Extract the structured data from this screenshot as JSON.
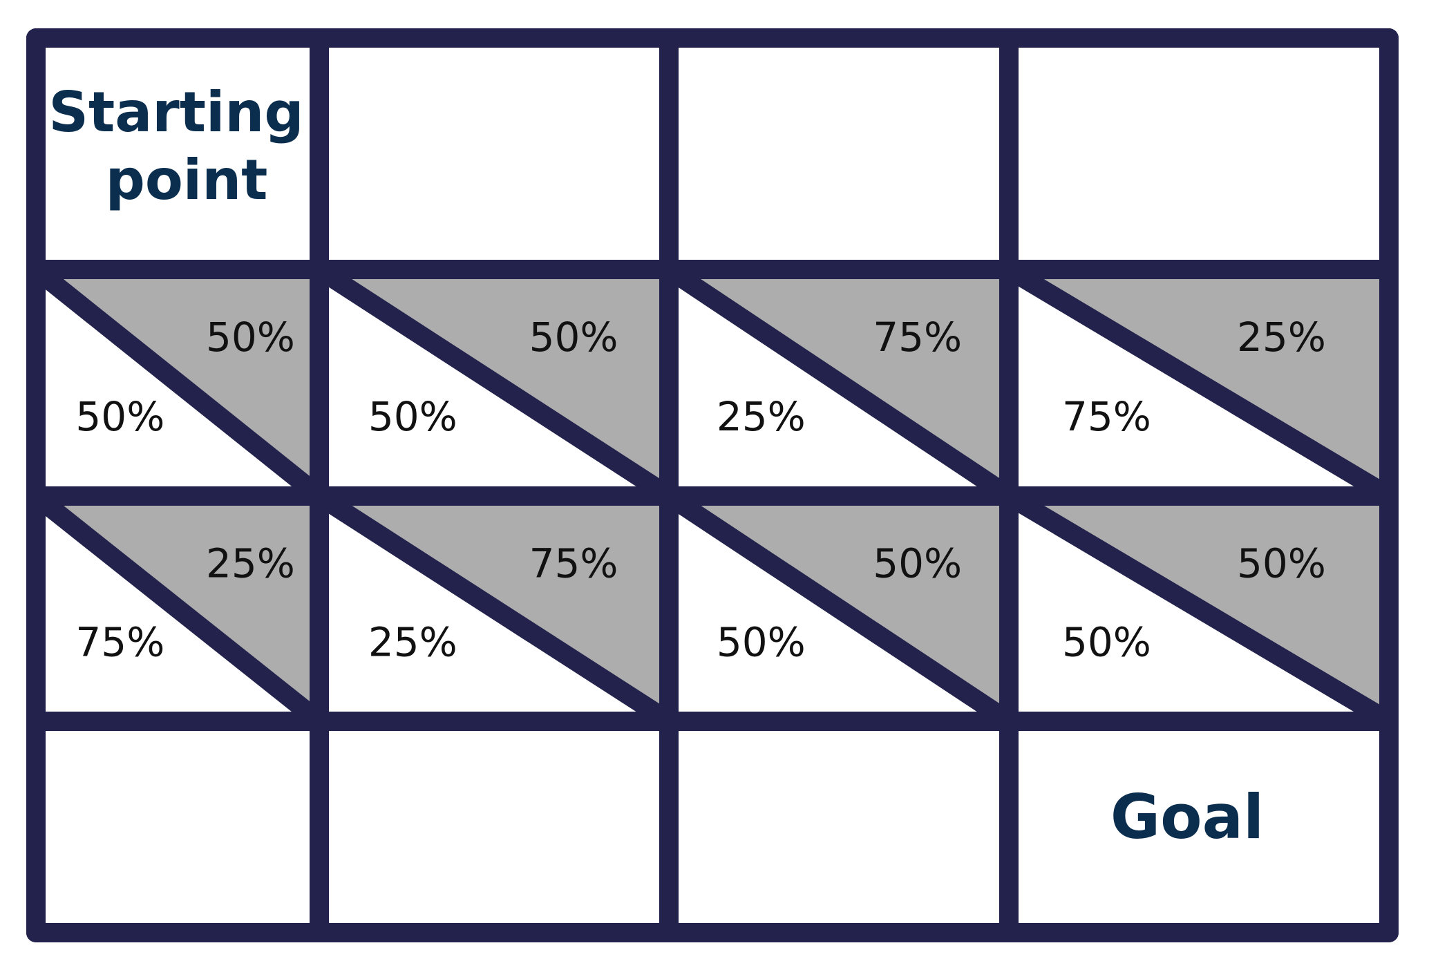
{
  "labels": {
    "start": [
      "Starting",
      "point"
    ],
    "goal": "Goal"
  },
  "colors": {
    "grid": "#22224c",
    "shade": "#adadad",
    "cell": "#ffffff",
    "label": "#0b2e4f",
    "text": "#111111"
  },
  "grid": {
    "rows": 4,
    "cols": 4
  },
  "split_cells": [
    {
      "row": 1,
      "col": 0,
      "shaded_pct": "50%",
      "white_pct": "50%"
    },
    {
      "row": 1,
      "col": 1,
      "shaded_pct": "50%",
      "white_pct": "50%"
    },
    {
      "row": 1,
      "col": 2,
      "shaded_pct": "75%",
      "white_pct": "25%"
    },
    {
      "row": 1,
      "col": 3,
      "shaded_pct": "25%",
      "white_pct": "75%"
    },
    {
      "row": 2,
      "col": 0,
      "shaded_pct": "25%",
      "white_pct": "75%"
    },
    {
      "row": 2,
      "col": 1,
      "shaded_pct": "75%",
      "white_pct": "25%"
    },
    {
      "row": 2,
      "col": 2,
      "shaded_pct": "50%",
      "white_pct": "50%"
    },
    {
      "row": 2,
      "col": 3,
      "shaded_pct": "50%",
      "white_pct": "50%"
    }
  ]
}
